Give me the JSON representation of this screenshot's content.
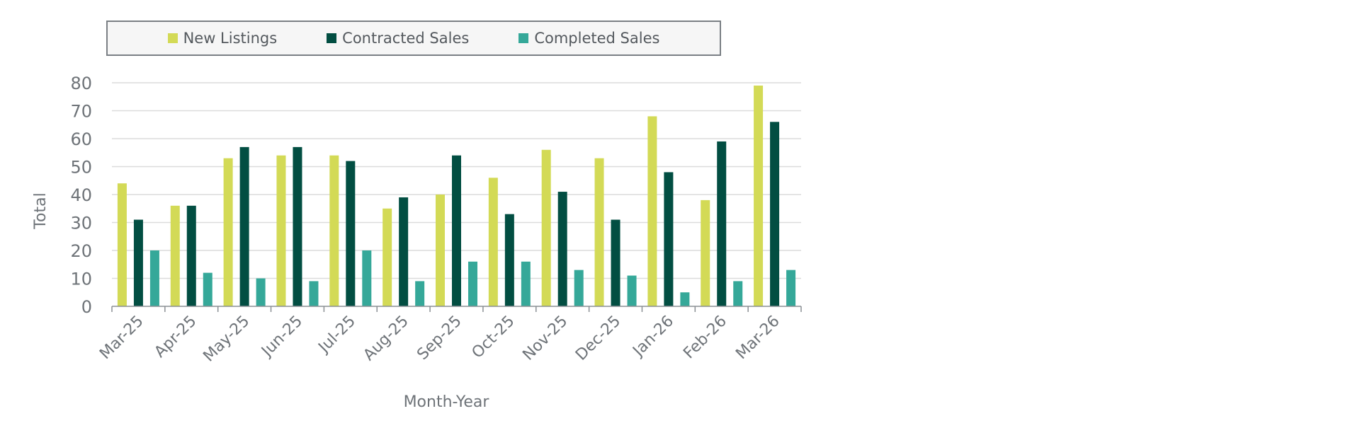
{
  "chart_data": {
    "type": "bar",
    "title": "",
    "xlabel": "Month-Year",
    "ylabel": "Total",
    "ylim": [
      0,
      80
    ],
    "yticks": [
      0,
      10,
      20,
      30,
      40,
      50,
      60,
      70,
      80
    ],
    "grid": true,
    "legend_position": "top",
    "categories": [
      "Mar-25",
      "Apr-25",
      "May-25",
      "Jun-25",
      "Jul-25",
      "Aug-25",
      "Sep-25",
      "Oct-25",
      "Nov-25",
      "Dec-25",
      "Jan-26",
      "Feb-26",
      "Mar-26"
    ],
    "series": [
      {
        "name": "New Listings",
        "color": "#d3da56",
        "values": [
          44,
          36,
          53,
          54,
          54,
          35,
          40,
          46,
          56,
          53,
          68,
          38,
          79
        ]
      },
      {
        "name": "Contracted Sales",
        "color": "#024e42",
        "values": [
          31,
          36,
          57,
          57,
          52,
          39,
          54,
          33,
          41,
          31,
          48,
          59,
          66
        ]
      },
      {
        "name": "Completed Sales",
        "color": "#35a899",
        "values": [
          20,
          12,
          10,
          9,
          20,
          9,
          16,
          16,
          13,
          11,
          5,
          9,
          13
        ]
      }
    ]
  }
}
